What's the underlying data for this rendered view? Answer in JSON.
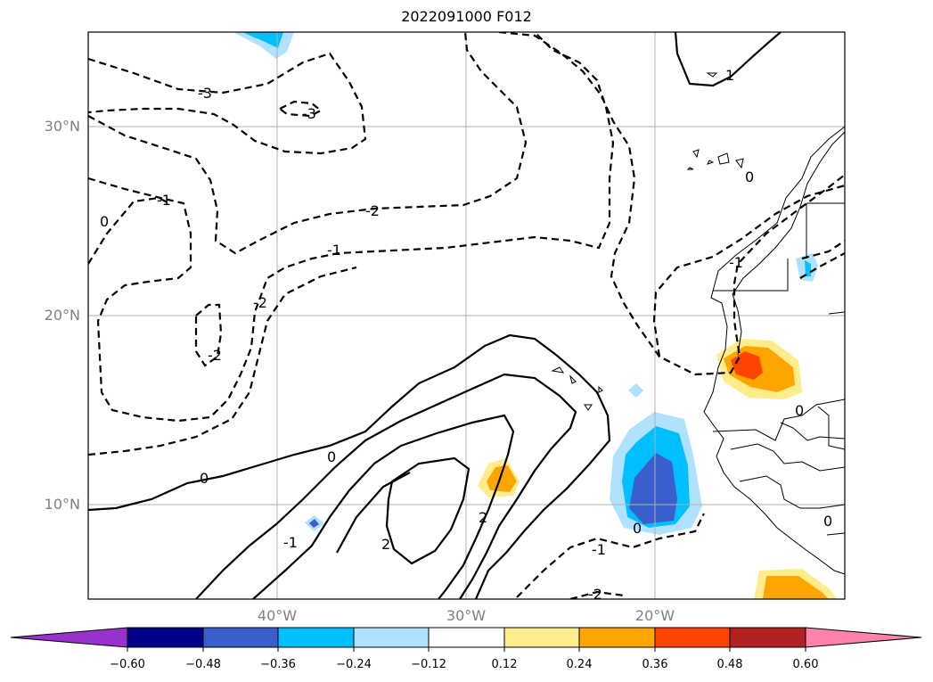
{
  "title": "2022091000 F012",
  "lat_labels": [
    "30°N",
    "20°N",
    "10°N"
  ],
  "lon_labels": [
    "40°W",
    "30°W",
    "20°W"
  ],
  "colorbar": {
    "ticks": [
      "−0.60",
      "−0.48",
      "−0.36",
      "−0.24",
      "−0.12",
      "0.12",
      "0.24",
      "0.36",
      "0.48",
      "0.60"
    ],
    "colors": [
      "#9932cc",
      "#00008b",
      "#3a5fcd",
      "#00bfff",
      "#b0e2ff",
      "#ffffff",
      "#ffec8b",
      "#ffa500",
      "#ff4500",
      "#b22222",
      "#ff82ab"
    ]
  },
  "contour_labels": [
    "-3",
    "-3",
    "-1",
    "-2",
    "-1",
    "0",
    "-2",
    "-2",
    "0",
    "0",
    "-1",
    "0",
    "-1",
    "2",
    "2",
    "0",
    "1",
    "-1",
    "-2",
    "0",
    "0"
  ]
}
